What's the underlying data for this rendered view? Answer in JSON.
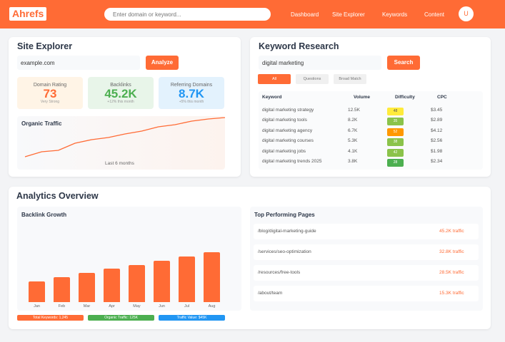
{
  "header": {
    "logo": "Ahrefs",
    "search_placeholder": "Enter domain or keyword...",
    "nav": [
      "Dashboard",
      "Site Explorer",
      "Keywords",
      "Content"
    ],
    "avatar": "U",
    "brand_color": "#ff6b35"
  },
  "site_explorer": {
    "title": "Site Explorer",
    "input_value": "example.com",
    "button": "Analyze",
    "stats": [
      {
        "label": "Domain Rating",
        "value": "73",
        "sub": "Very Strong",
        "color": "#ff6b35",
        "bg": "#fff4e6"
      },
      {
        "label": "Backlinks",
        "value": "45.2K",
        "sub": "+12% this month",
        "color": "#4caf50",
        "bg": "#e8f5e9"
      },
      {
        "label": "Referring Domains",
        "value": "8.7K",
        "sub": "+5% this month",
        "color": "#2196f3",
        "bg": "#e3f2fd"
      }
    ],
    "traffic": {
      "title": "Organic Traffic",
      "caption": "Last 6 months",
      "values": [
        0,
        7,
        9,
        19,
        24,
        27,
        32,
        36,
        42,
        45,
        50,
        53,
        55
      ]
    }
  },
  "keyword_research": {
    "title": "Keyword Research",
    "input_value": "digital marketing",
    "button": "Search",
    "filters": [
      {
        "label": "All",
        "active": true
      },
      {
        "label": "Questions",
        "active": false
      },
      {
        "label": "Broad Match",
        "active": false
      }
    ],
    "columns": [
      "Keyword",
      "Volume",
      "Difficulty",
      "CPC"
    ],
    "rows": [
      {
        "keyword": "digital marketing strategy",
        "volume": "12.5K",
        "difficulty": "48",
        "cpc": "$3.45",
        "color": "#ffeb3b"
      },
      {
        "keyword": "digital marketing tools",
        "volume": "8.2K",
        "difficulty": "35",
        "cpc": "$2.89",
        "color": "#8bc34a"
      },
      {
        "keyword": "digital marketing agency",
        "volume": "6.7K",
        "difficulty": "52",
        "cpc": "$4.12",
        "color": "#ff9800"
      },
      {
        "keyword": "digital marketing courses",
        "volume": "5.3K",
        "difficulty": "38",
        "cpc": "$2.56",
        "color": "#8bc34a"
      },
      {
        "keyword": "digital marketing jobs",
        "volume": "4.1K",
        "difficulty": "42",
        "cpc": "$1.98",
        "color": "#8bc34a"
      },
      {
        "keyword": "digital marketing trends 2025",
        "volume": "3.8K",
        "difficulty": "28",
        "cpc": "$2.34",
        "color": "#4caf50"
      }
    ]
  },
  "analytics": {
    "title": "Analytics Overview",
    "chart_data": {
      "type": "bar",
      "title": "Backlink Growth",
      "categories": [
        "Jan",
        "Feb",
        "Mar",
        "Apr",
        "May",
        "Jun",
        "Jul",
        "Aug"
      ],
      "values": [
        30,
        36,
        42,
        48,
        54,
        60,
        66,
        72
      ],
      "color": "#ff6b35"
    },
    "legend": [
      {
        "label": "Total Keywords: 1,245",
        "color": "#ff6b35"
      },
      {
        "label": "Organic Traffic: 125K",
        "color": "#4caf50"
      },
      {
        "label": "Traffic Value: $45K",
        "color": "#2196f3"
      }
    ],
    "top_pages": {
      "title": "Top Performing Pages",
      "items": [
        {
          "path": "/blog/digital-marketing-guide",
          "traffic": "45.2K traffic"
        },
        {
          "path": "/services/seo-optimization",
          "traffic": "32.8K traffic"
        },
        {
          "path": "/resources/free-tools",
          "traffic": "28.5K traffic"
        },
        {
          "path": "/about/team",
          "traffic": "15.3K traffic"
        }
      ]
    }
  }
}
